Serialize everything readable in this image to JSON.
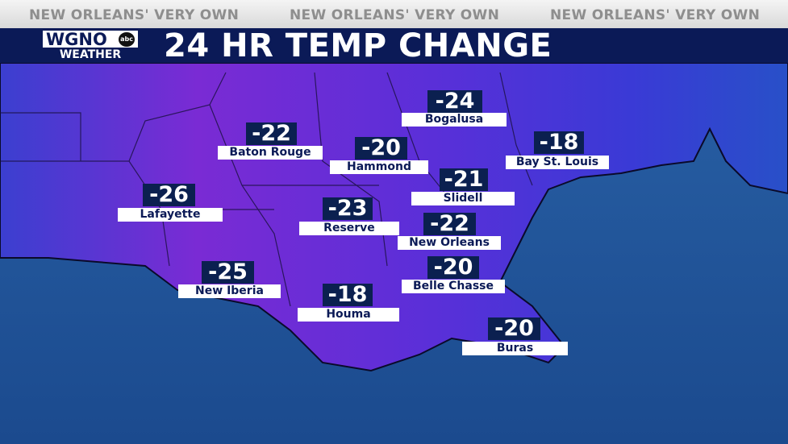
{
  "header": {
    "taglines": [
      "NEW ORLEANS' VERY OWN",
      "NEW ORLEANS' VERY OWN",
      "NEW ORLEANS' VERY OWN"
    ],
    "logo": {
      "station": "WGNO",
      "network": "abc",
      "sub": "WEATHER"
    },
    "title": "24 HR TEMP CHANGE"
  },
  "stations": [
    {
      "name": "Bogalusa",
      "value": -24
    },
    {
      "name": "Baton Rouge",
      "value": -22
    },
    {
      "name": "Hammond",
      "value": -20
    },
    {
      "name": "Bay St. Louis",
      "value": -18
    },
    {
      "name": "Slidell",
      "value": -21
    },
    {
      "name": "Lafayette",
      "value": -26
    },
    {
      "name": "Reserve",
      "value": -23
    },
    {
      "name": "New Orleans",
      "value": -22
    },
    {
      "name": "Belle Chasse",
      "value": -20
    },
    {
      "name": "New Iberia",
      "value": -25
    },
    {
      "name": "Houma",
      "value": -18
    },
    {
      "name": "Buras",
      "value": -20
    }
  ]
}
